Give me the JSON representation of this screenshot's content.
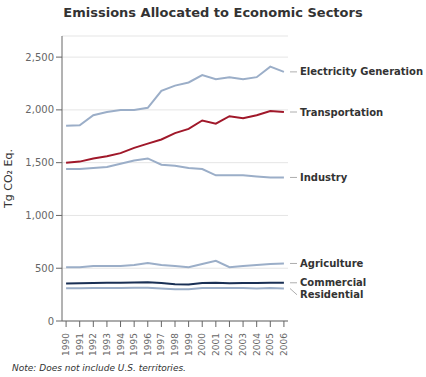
{
  "chart_data": {
    "type": "line",
    "title": "Emissions Allocated to Economic Sectors",
    "y_label": "Tg CO₂ Eq.",
    "annotations": [
      "Note: Does not include U.S. territories."
    ],
    "x": [
      1990,
      1991,
      1992,
      1993,
      1994,
      1995,
      1996,
      1997,
      1998,
      1999,
      2000,
      2001,
      2002,
      2003,
      2004,
      2005,
      2006
    ],
    "xlim": [
      1989.7,
      2006.3
    ],
    "xticks": [
      1990,
      1991,
      1992,
      1993,
      1994,
      1995,
      1996,
      1997,
      1998,
      1999,
      2000,
      2001,
      2002,
      2003,
      2004,
      2005,
      2006
    ],
    "ylim": [
      0,
      2700
    ],
    "yticks": [
      0,
      500,
      {
        "value": 1000,
        "label": "1,000"
      },
      {
        "value": 1500,
        "label": "1,500"
      },
      {
        "value": 2000,
        "label": "2,000"
      },
      {
        "value": 2500,
        "label": "2,500"
      }
    ],
    "grid": true,
    "series": [
      {
        "name": "Electricity Generation",
        "color": "#9BAEC8",
        "values": [
          1850,
          1855,
          1950,
          1980,
          2000,
          2000,
          2020,
          2180,
          2230,
          2260,
          2330,
          2290,
          2310,
          2290,
          2310,
          2410,
          2360
        ]
      },
      {
        "name": "Transportation",
        "color": "#A0182A",
        "values": [
          1500,
          1510,
          1540,
          1560,
          1590,
          1640,
          1680,
          1720,
          1780,
          1820,
          1900,
          1870,
          1940,
          1920,
          1950,
          1990,
          1980
        ]
      },
      {
        "name": "Industry",
        "color": "#9BAEC8",
        "values": [
          1440,
          1440,
          1450,
          1460,
          1490,
          1520,
          1540,
          1480,
          1470,
          1450,
          1440,
          1380,
          1380,
          1380,
          1370,
          1360,
          1360
        ]
      },
      {
        "name": "Agriculture",
        "color": "#9BAEC8",
        "values": [
          510,
          510,
          520,
          520,
          520,
          530,
          550,
          530,
          520,
          510,
          540,
          570,
          510,
          520,
          530,
          540,
          545
        ]
      },
      {
        "name": "Commercial",
        "color": "#1A3055",
        "values": [
          355,
          358,
          360,
          362,
          363,
          365,
          368,
          360,
          348,
          345,
          360,
          362,
          358,
          360,
          360,
          362,
          362
        ]
      },
      {
        "name": "Residential",
        "color": "#9BAEC8",
        "values": [
          310,
          310,
          312,
          312,
          312,
          314,
          316,
          308,
          300,
          300,
          312,
          312,
          312,
          312,
          308,
          312,
          308
        ]
      }
    ]
  }
}
